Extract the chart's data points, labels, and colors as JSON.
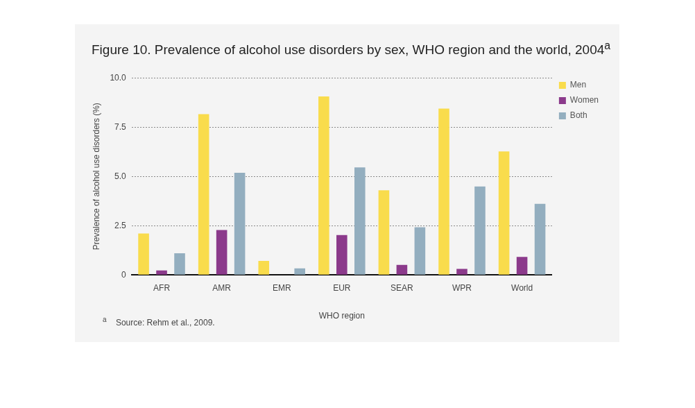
{
  "chart_data": {
    "type": "bar",
    "title": "Figure 10. Prevalence of alcohol use disorders by sex, WHO region and the world, 2004$^{a}$",
    "xlabel": "WHO region",
    "ylabel": "Prevalence of alcohol use disorders (%)",
    "categories": [
      "AFR",
      "AMR",
      "EMR",
      "EUR",
      "SEAR",
      "WPR",
      "World"
    ],
    "series": [
      {
        "name": "Men",
        "color": "#f9dc4c",
        "values": [
          2.1,
          8.16,
          0.71,
          9.06,
          4.29,
          8.44,
          6.27
        ]
      },
      {
        "name": "Women",
        "color": "#8b3a8b",
        "values": [
          0.23,
          2.28,
          0,
          2.02,
          0.51,
          0.31,
          0.91
        ]
      },
      {
        "name": "Both",
        "color": "#93aebf",
        "values": [
          1.1,
          5.18,
          0.33,
          5.46,
          2.42,
          4.49,
          3.61
        ]
      }
    ],
    "ylim": [
      0,
      10
    ],
    "yticks": [
      0,
      2.5,
      {
        "value": 5,
        "label": "5.0"
      },
      7.5,
      {
        "value": 10,
        "label": "10.0"
      }
    ],
    "grid": "y",
    "legend": "top right",
    "annotations": [
      "$^{a}$    Source: Rehm et al., 2009."
    ]
  }
}
